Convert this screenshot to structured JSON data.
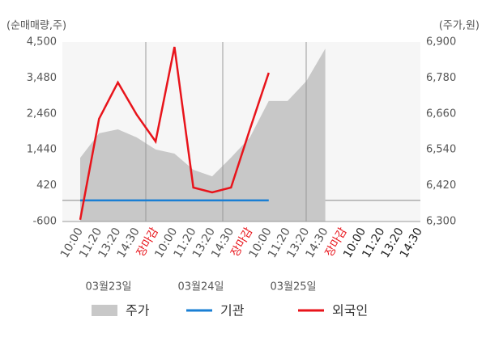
{
  "chart_data": {
    "type": "combo",
    "y_label": "(순매매량,주)",
    "y2_label": "(주가,원)",
    "categories": [
      "10:00",
      "11:20",
      "13:20",
      "14:30",
      "장마감",
      "10:00",
      "11:20",
      "13:20",
      "14:30",
      "장마감",
      "10:00",
      "11:20",
      "13:20",
      "14:30",
      "장마감",
      "10:00",
      "11:20",
      "13:20",
      "14:30"
    ],
    "dates": [
      "03월23일",
      "03월24일",
      "03월25일"
    ],
    "ylim": [
      -600,
      4500
    ],
    "yticks": [
      -600,
      420,
      {
        "value": 1440,
        "label": "1,440"
      },
      {
        "value": 2460,
        "label": "2,460"
      },
      {
        "value": 3480,
        "label": "3,480"
      },
      {
        "value": 4500,
        "label": "4,500"
      }
    ],
    "y2lim": [
      6300,
      6900
    ],
    "y2ticks": [
      {
        "value": 6300,
        "label": "6,300"
      },
      {
        "value": 6420,
        "label": "6,420"
      },
      {
        "value": 6540,
        "label": "6,540"
      },
      {
        "value": 6660,
        "label": "6,660"
      },
      {
        "value": 6780,
        "label": "6,780"
      },
      {
        "value": 6900,
        "label": "6,900"
      }
    ],
    "series": [
      {
        "name": "주가",
        "type": "area",
        "axis": "y2",
        "color": "#c8c8c8",
        "values": [
          6513,
          6595,
          6608,
          6581,
          6541,
          6527,
          6473,
          6451,
          6514,
          6581,
          6703,
          6703,
          6770,
          6878,
          null,
          null,
          null,
          null,
          null
        ]
      },
      {
        "name": "기관",
        "type": "line",
        "color": "#1a7fd4",
        "values": [
          0,
          0,
          0,
          0,
          0,
          0,
          0,
          0,
          0,
          0,
          0,
          null,
          null,
          null,
          null,
          null,
          null,
          null,
          null
        ]
      },
      {
        "name": "외국인",
        "type": "line",
        "color": "#e8141b",
        "values": [
          -550,
          2318,
          3352,
          2433,
          1675,
          4362,
          366,
          228,
          366,
          2019,
          3627,
          null,
          null,
          null,
          null,
          null,
          null,
          null,
          null
        ]
      }
    ]
  }
}
